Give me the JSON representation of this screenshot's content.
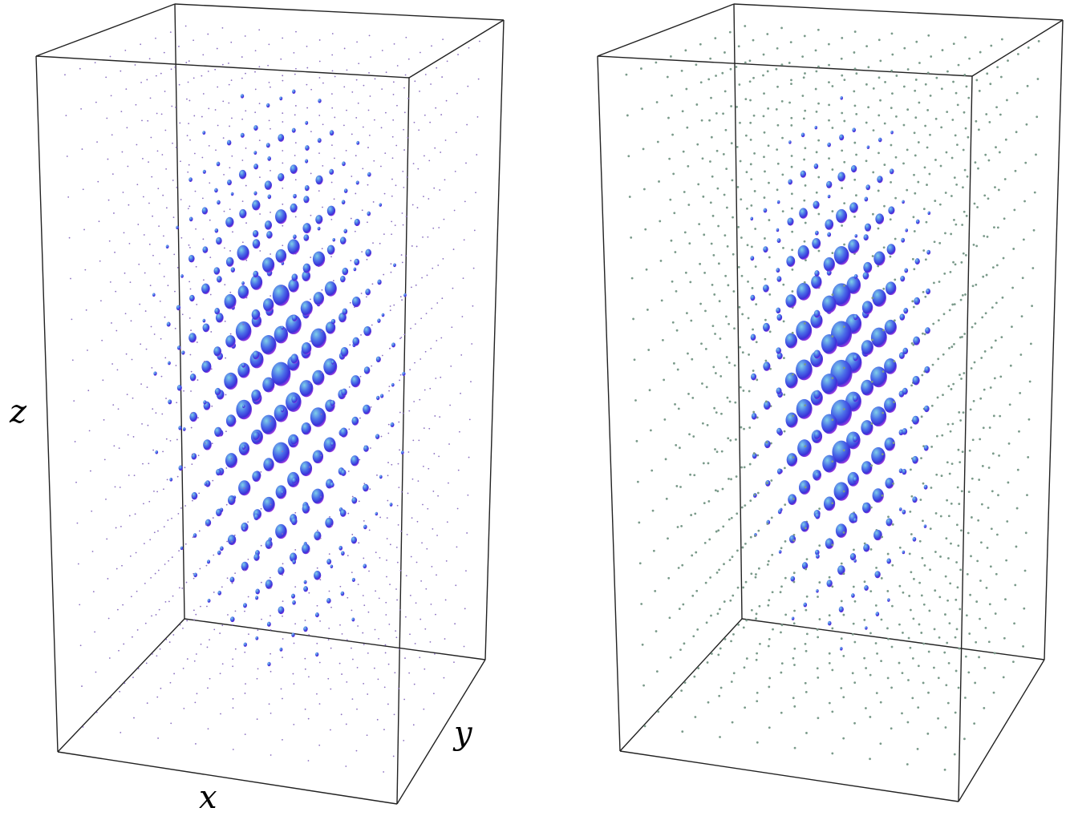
{
  "panels": [
    {
      "axis_labels": {
        "z": "z",
        "y": "y",
        "x": "x"
      }
    },
    {}
  ]
}
